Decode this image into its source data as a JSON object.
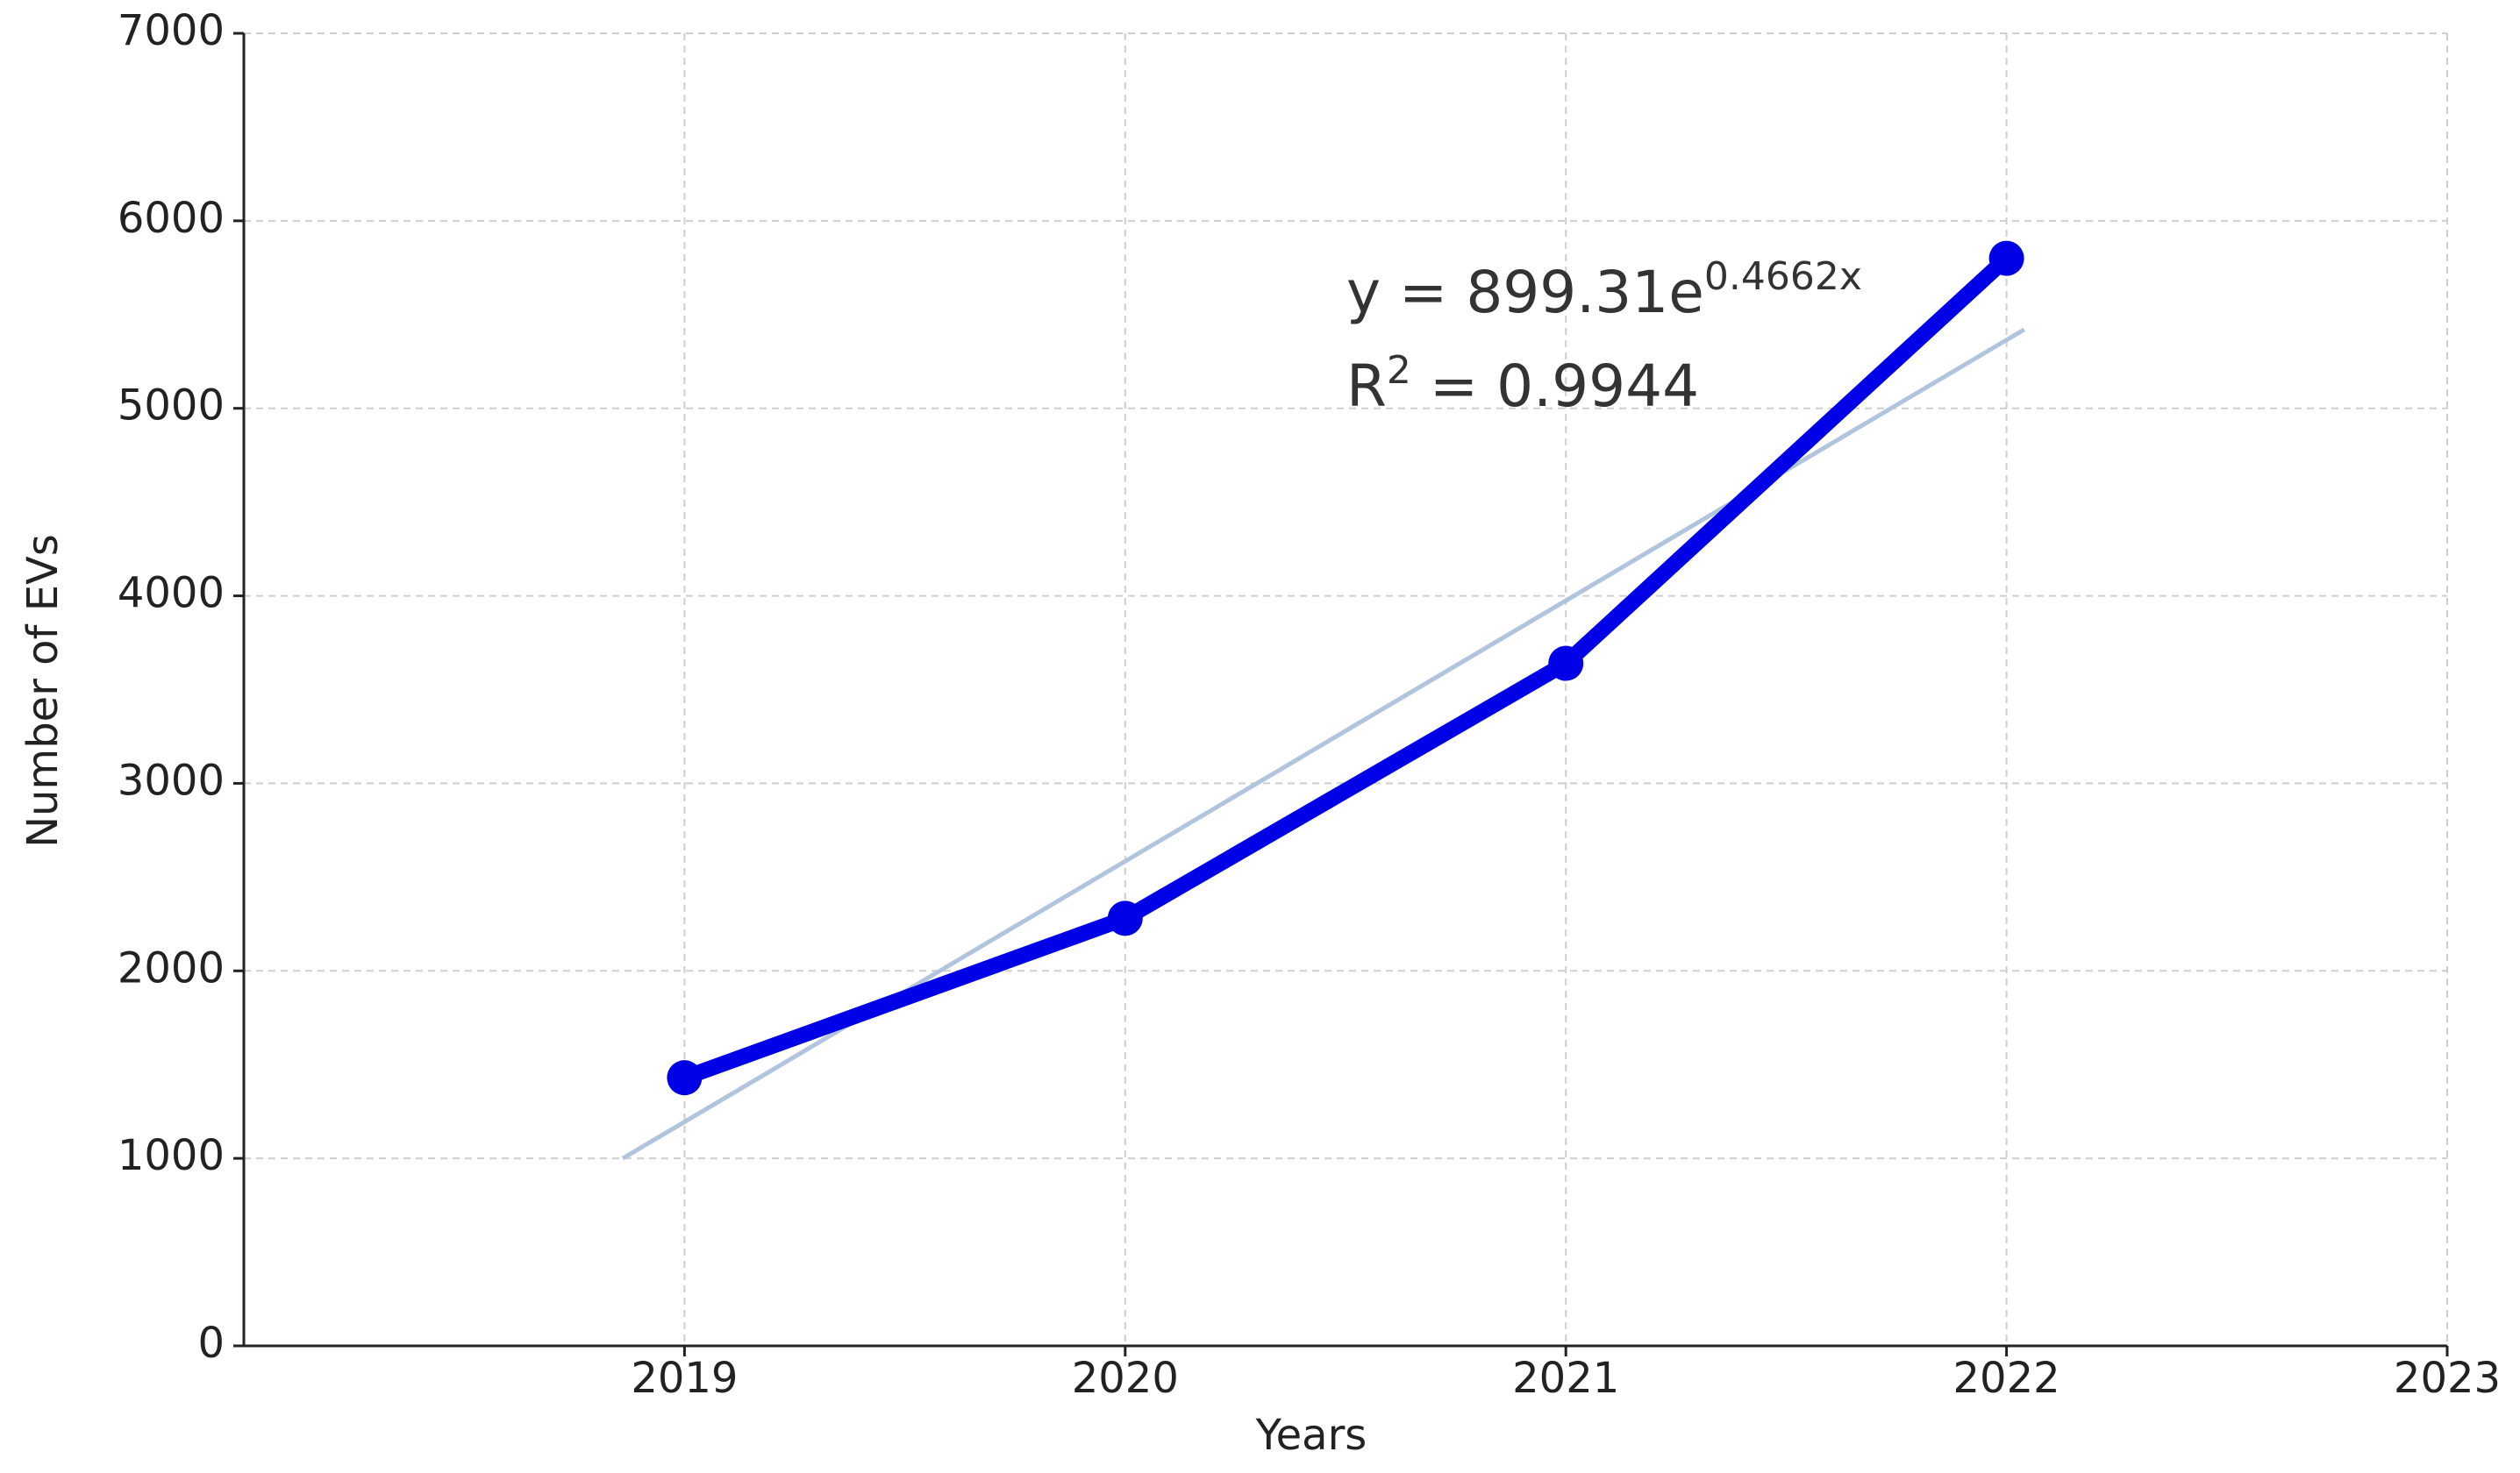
{
  "chart_data": {
    "type": "line",
    "x_label": "Years",
    "y_label": "Number of EVs",
    "x": [
      2019,
      2020,
      2021,
      2022
    ],
    "series": [
      {
        "color": "#0000e6",
        "values": [
          1430,
          2280,
          3640,
          5800
        ]
      }
    ],
    "trendline": {
      "color": "#b0c4de",
      "x": [
        2018.86,
        2022.04
      ],
      "values": [
        1000,
        5420
      ]
    },
    "annotation": {
      "equation": {
        "base": "y = 899.31e",
        "exponent": "0.4662x"
      },
      "r_squared": {
        "base": "R",
        "exponent": "2",
        "rest": " = 0.9944"
      }
    },
    "xlim": [
      2018,
      2023
    ],
    "xticks": [
      2019,
      2020,
      2021,
      2022,
      2023
    ],
    "ylim": [
      0,
      7000
    ],
    "yticks": [
      0,
      1000,
      2000,
      3000,
      4000,
      5000,
      6000,
      7000
    ],
    "grid": true
  }
}
